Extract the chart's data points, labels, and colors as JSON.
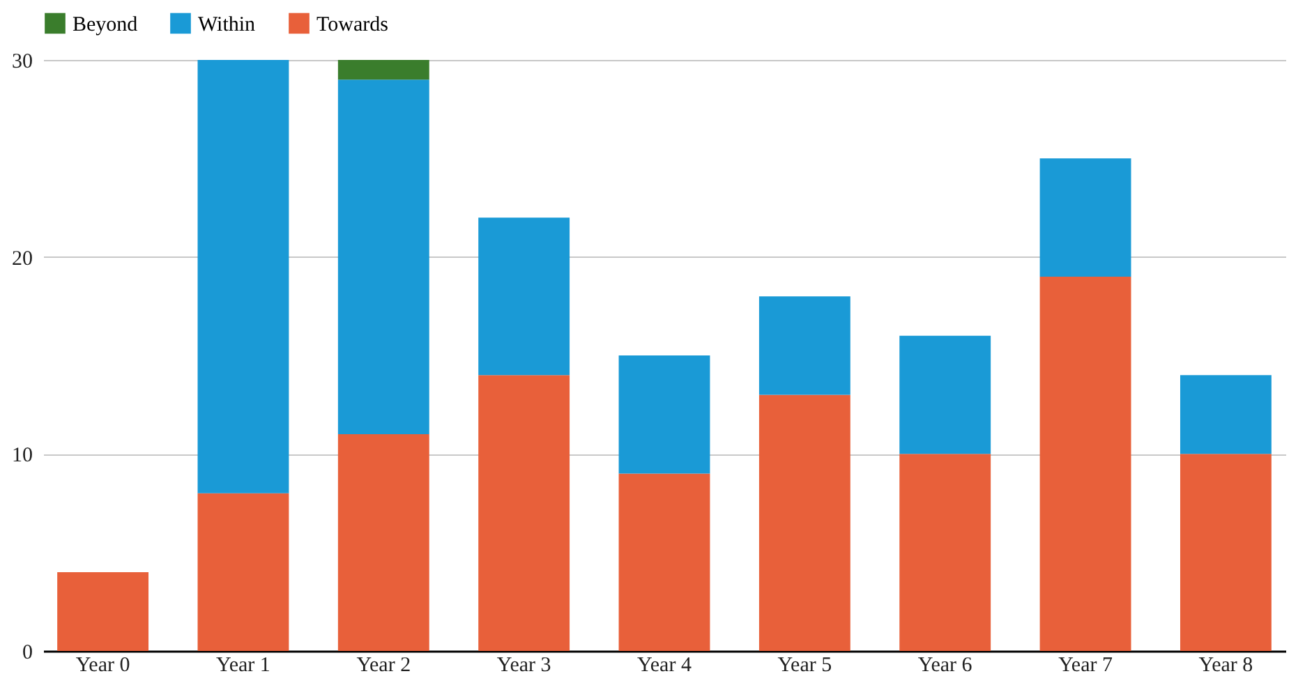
{
  "chart_data": {
    "type": "bar",
    "stacked": true,
    "categories": [
      "Year 0",
      "Year 1",
      "Year 2",
      "Year 3",
      "Year 4",
      "Year 5",
      "Year 6",
      "Year 7",
      "Year 8"
    ],
    "series": [
      {
        "name": "Towards",
        "color": "#e8603a",
        "values": [
          4,
          8,
          11,
          14,
          9,
          13,
          10,
          19,
          10
        ]
      },
      {
        "name": "Within",
        "color": "#1a9ad6",
        "values": [
          null,
          22,
          18,
          8,
          6,
          5,
          6,
          6,
          4
        ]
      },
      {
        "name": "Beyond",
        "color": "#3a7d2c",
        "values": [
          null,
          null,
          1,
          null,
          null,
          null,
          null,
          null,
          null
        ]
      }
    ],
    "ylim": [
      0,
      30
    ],
    "yticks": [
      0,
      10,
      20,
      30
    ],
    "grid": "y",
    "legend": "top"
  }
}
